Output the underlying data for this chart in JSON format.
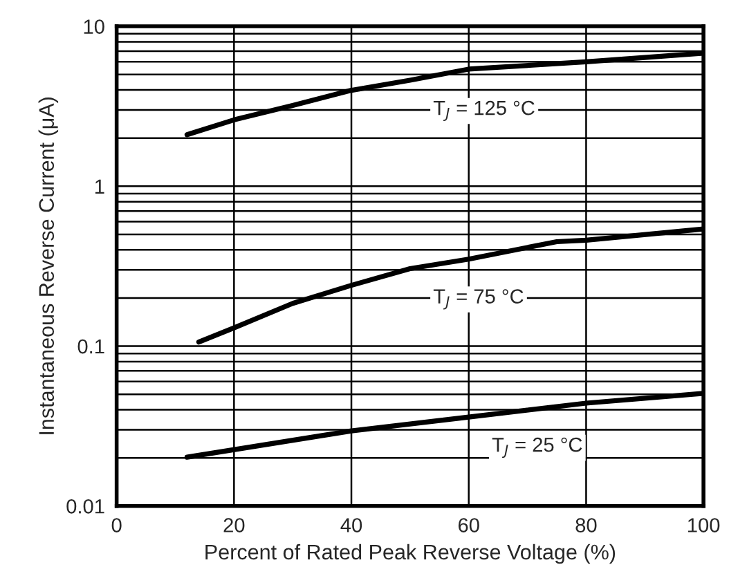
{
  "chart_data": {
    "type": "line",
    "xlabel": "Percent of Rated Peak Reverse Voltage (%)",
    "ylabel": "Instantaneous Reverse Current (μA)",
    "log": "y",
    "grid": true,
    "legend": false,
    "marker": "none",
    "line_style": "solid",
    "xlim": [
      0,
      100
    ],
    "xticks": [
      0,
      20,
      40,
      60,
      80,
      100
    ],
    "ylim": [
      0.01,
      10
    ],
    "yticks": [
      0.01,
      0.1,
      1,
      10
    ],
    "series": [
      {
        "name": "T$_{J}$ = 125 °C",
        "color": "#000000",
        "x": [
          12,
          20,
          30,
          40,
          50,
          60,
          80,
          100
        ],
        "values": [
          2.1,
          2.6,
          3.2,
          3.98,
          4.6,
          5.4,
          6.0,
          6.8
        ]
      },
      {
        "name": "T$_{J}$ = 75 °C",
        "color": "#000000",
        "x": [
          14,
          20,
          30,
          40,
          50,
          60,
          75,
          80,
          100
        ],
        "values": [
          0.106,
          0.13,
          0.185,
          0.24,
          0.305,
          0.35,
          0.45,
          0.46,
          0.54
        ]
      },
      {
        "name": "T$_{J}$ = 25 °C",
        "color": "#000000",
        "x": [
          12,
          40,
          60,
          80,
          100
        ],
        "values": [
          0.0202,
          0.0295,
          0.036,
          0.044,
          0.0506
        ]
      }
    ]
  }
}
